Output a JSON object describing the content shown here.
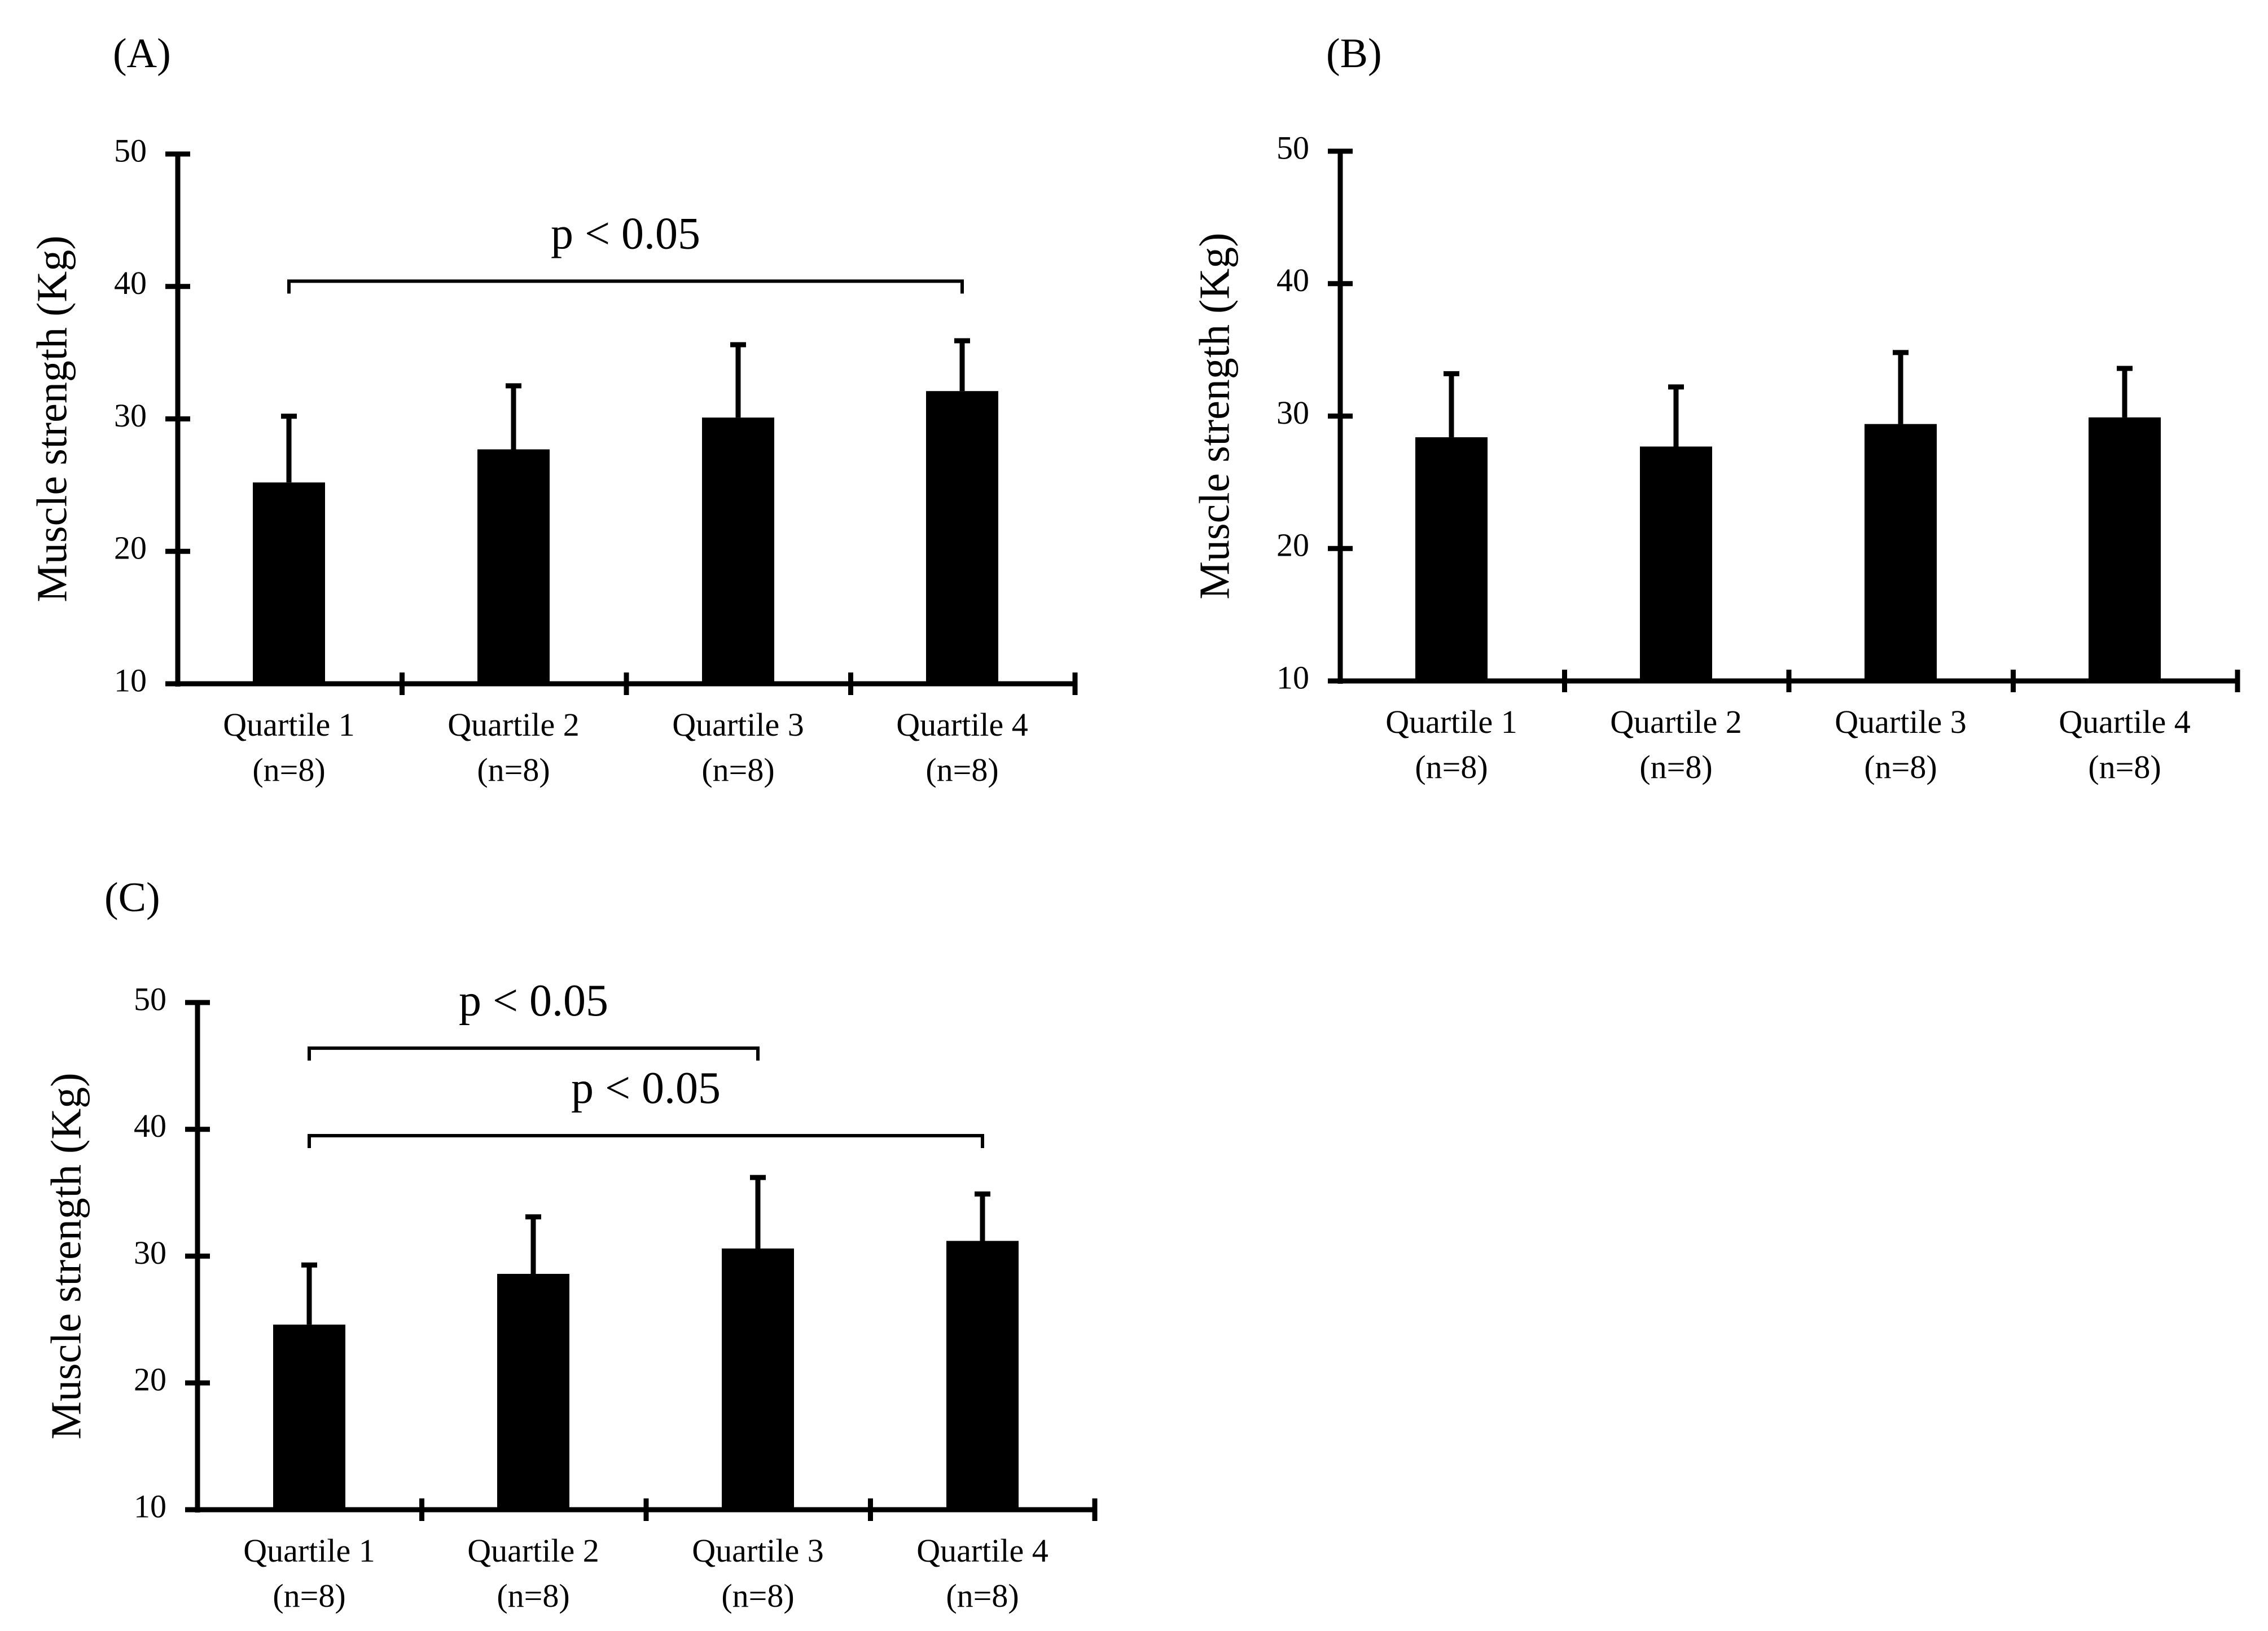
{
  "colors": {
    "bar": "#000000",
    "axis": "#000000",
    "background": "#ffffff"
  },
  "chart_data": [
    {
      "type": "bar",
      "panel": "(A)",
      "ylabel": "Muscle strength (Kg)",
      "ylim": [
        10,
        50
      ],
      "yticks": [
        10,
        20,
        30,
        40,
        50
      ],
      "categories": [
        "Quartile 1",
        "Quartile 2",
        "Quartile 3",
        "Quartile 4"
      ],
      "category_n": [
        "(n=8)",
        "(n=8)",
        "(n=8)",
        "(n=8)"
      ],
      "values": [
        25.2,
        27.7,
        30.1,
        32.1
      ],
      "errors": [
        5.0,
        4.8,
        5.5,
        3.8
      ],
      "significance": [
        {
          "from": 0,
          "to": 3,
          "label": "p < 0.05",
          "at": 40.4
        }
      ]
    },
    {
      "type": "bar",
      "panel": "(B)",
      "ylabel": "Muscle strength (Kg)",
      "ylim": [
        10,
        50
      ],
      "yticks": [
        10,
        20,
        30,
        40,
        50
      ],
      "categories": [
        "Quartile 1",
        "Quartile 2",
        "Quartile 3",
        "Quartile 4"
      ],
      "category_n": [
        "(n=8)",
        "(n=8)",
        "(n=8)",
        "(n=8)"
      ],
      "values": [
        28.4,
        27.7,
        29.4,
        29.9
      ],
      "errors": [
        4.8,
        4.5,
        5.4,
        3.7
      ],
      "significance": []
    },
    {
      "type": "bar",
      "panel": "(C)",
      "ylabel": "Muscle strength (Kg)",
      "ylim": [
        10,
        50
      ],
      "yticks": [
        10,
        20,
        30,
        40,
        50
      ],
      "categories": [
        "Quartile 1",
        "Quartile 2",
        "Quartile 3",
        "Quartile 4"
      ],
      "category_n": [
        "(n=8)",
        "(n=8)",
        "(n=8)",
        "(n=8)"
      ],
      "values": [
        24.6,
        28.6,
        30.6,
        31.2
      ],
      "errors": [
        4.7,
        4.5,
        5.6,
        3.7
      ],
      "significance": [
        {
          "from": 0,
          "to": 2,
          "label": "p < 0.05",
          "at": 46.4
        },
        {
          "from": 0,
          "to": 3,
          "label": "p < 0.05",
          "at": 39.5
        }
      ]
    }
  ]
}
